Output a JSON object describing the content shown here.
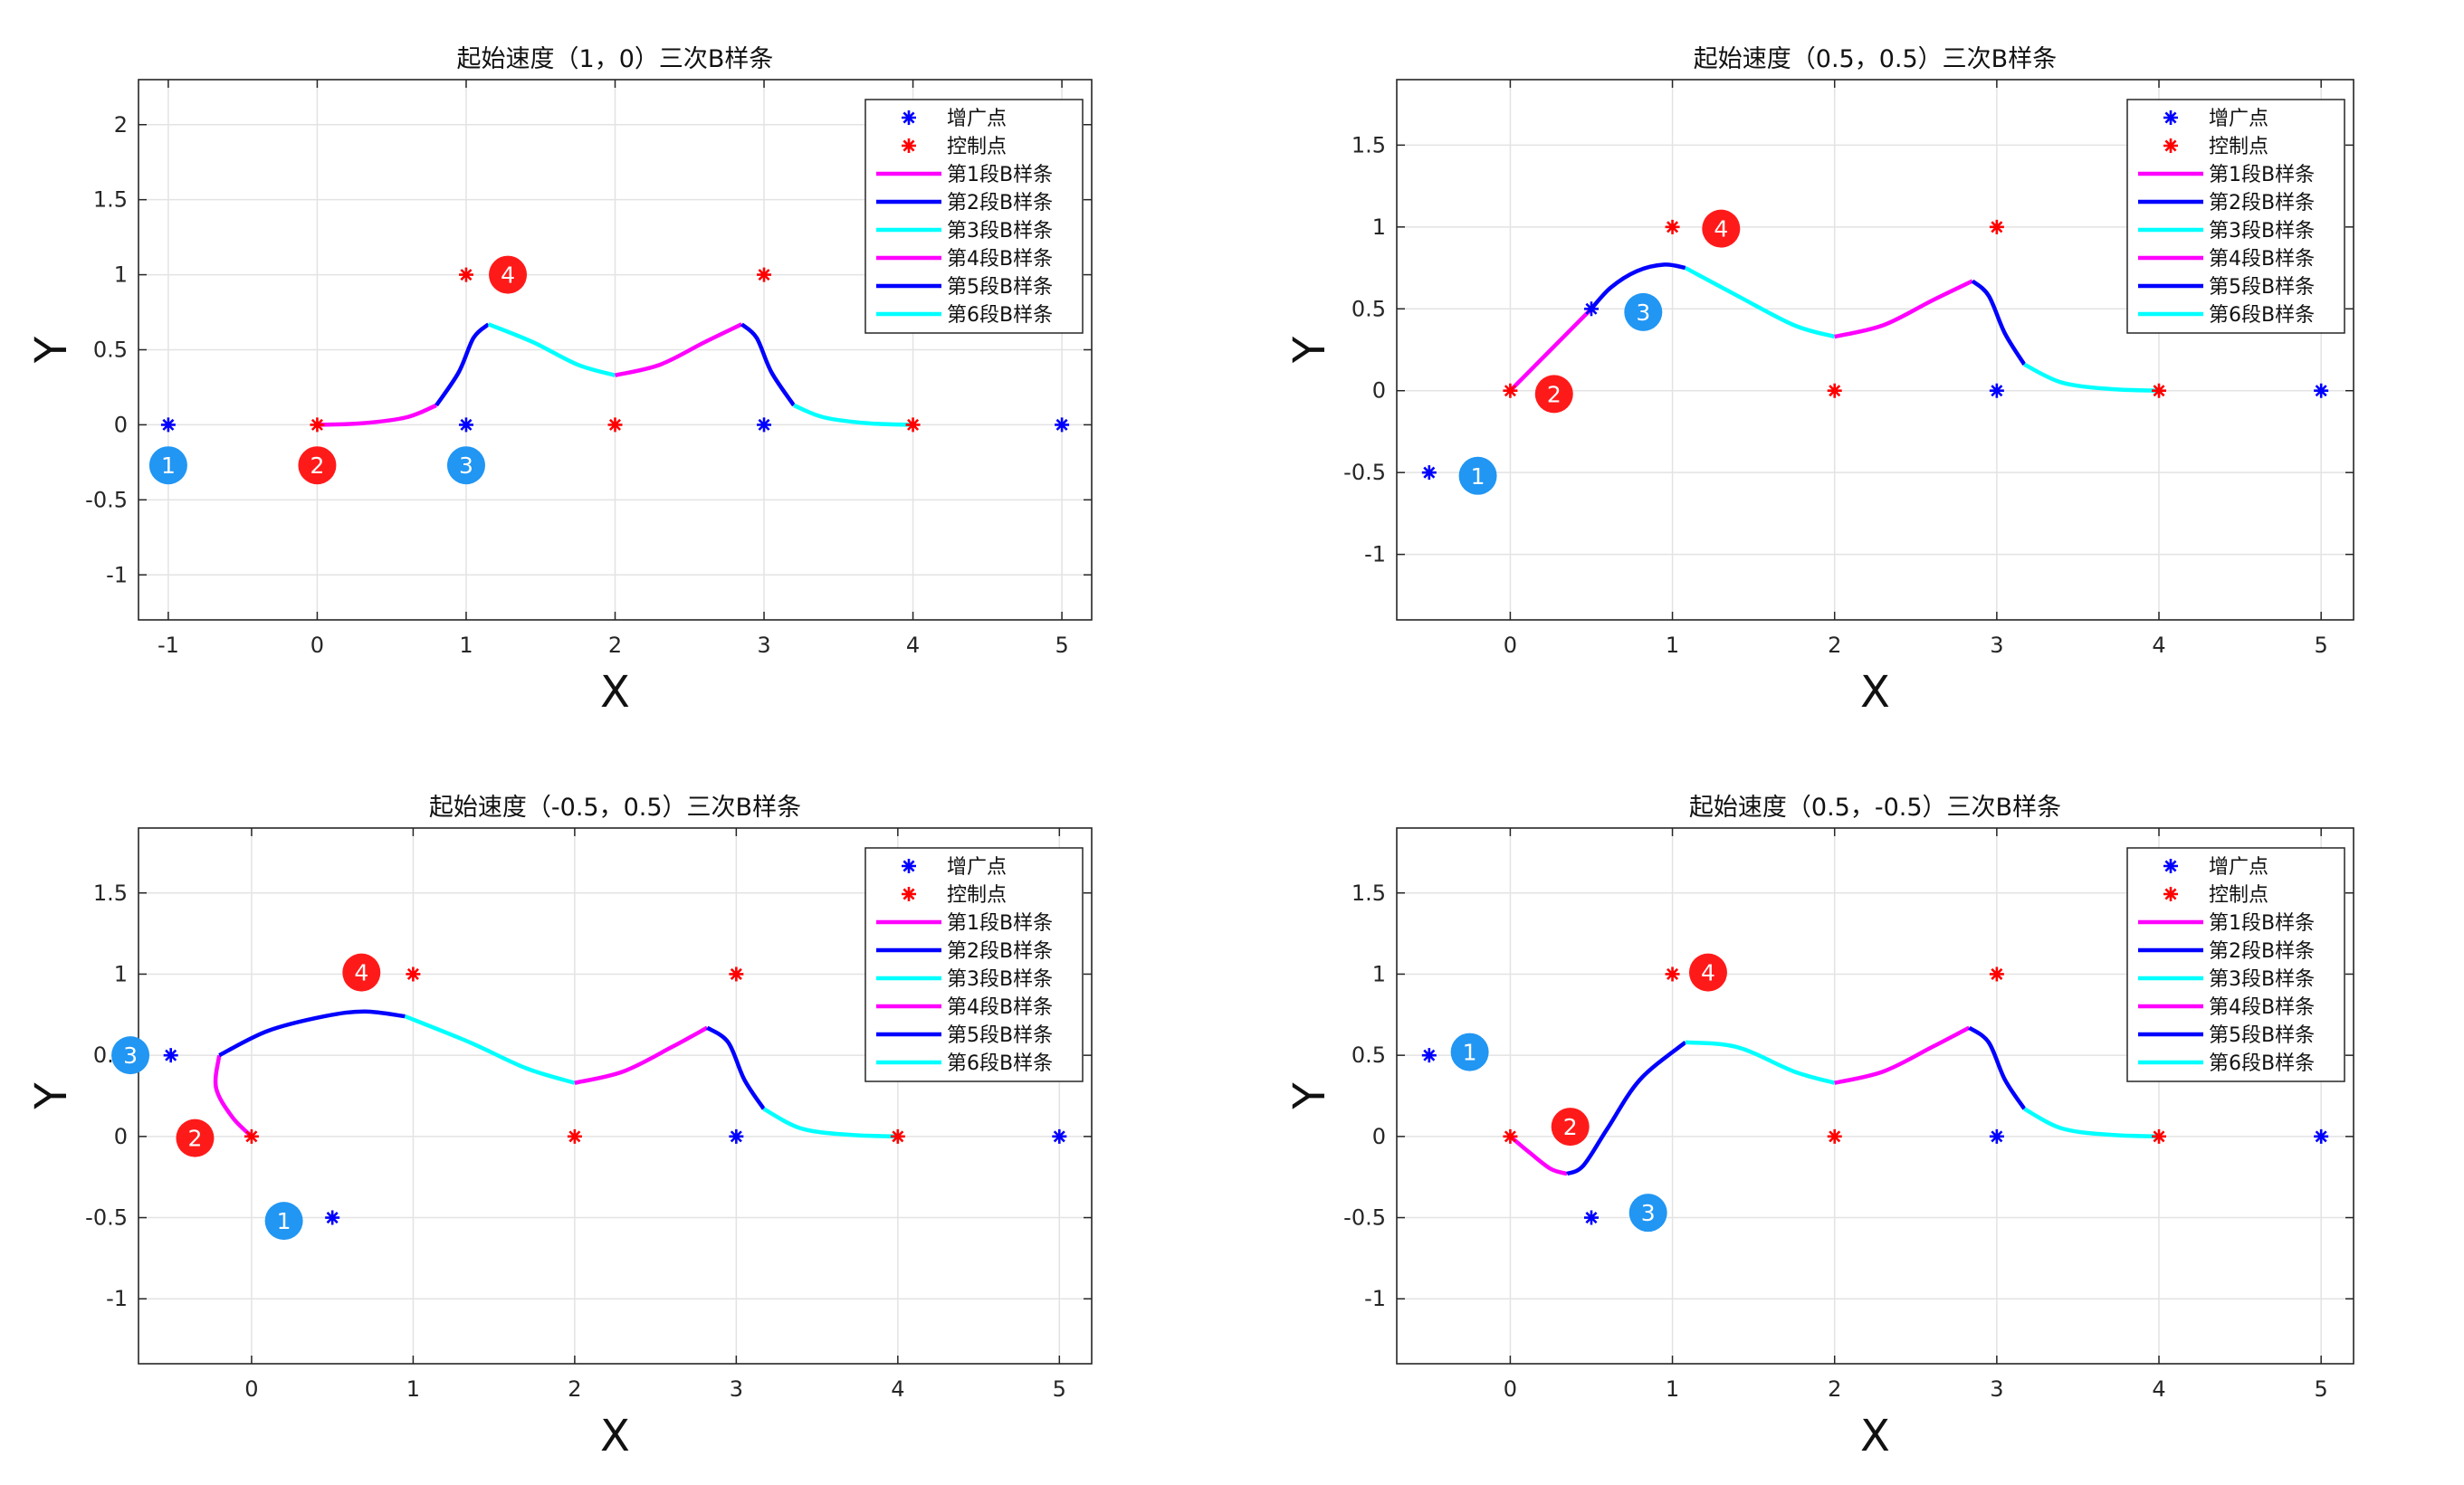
{
  "chart_data": [
    {
      "type": "line",
      "title": "起始速度（1，0）三次B样条",
      "xlabel": "X",
      "ylabel": "Y",
      "xlim": [
        -1.2,
        5.2
      ],
      "ylim": [
        -1.3,
        2.3
      ],
      "xticks": [
        -1,
        0,
        1,
        2,
        3,
        4,
        5
      ],
      "xtick_labels": [
        "-1",
        "0",
        "1",
        "2",
        "3",
        "4",
        "5"
      ],
      "yticks": [
        -1,
        -0.5,
        0,
        0.5,
        1,
        1.5,
        2
      ],
      "ytick_labels": [
        "-1",
        "-0.5",
        "0",
        "0.5",
        "1",
        "1.5",
        "2"
      ],
      "grid": true,
      "legend_position": "top-right",
      "augmented_points": {
        "name": "增广点",
        "color": "#0000ff",
        "x": [
          -1,
          1,
          3,
          5
        ],
        "y": [
          0,
          0,
          0,
          0
        ]
      },
      "control_points": {
        "name": "控制点",
        "color": "#ff0000",
        "x": [
          0,
          1,
          2,
          3,
          4
        ],
        "y": [
          0,
          1,
          0,
          1,
          0
        ]
      },
      "segments": [
        {
          "name": "第1段B样条",
          "color": "#ff00ff",
          "x": [
            0,
            0.3,
            0.6,
            0.8
          ],
          "y": [
            0,
            0.01,
            0.05,
            0.13
          ]
        },
        {
          "name": "第2段B样条",
          "color": "#0000ff",
          "x": [
            0.8,
            0.95,
            1.05,
            1.15
          ],
          "y": [
            0.13,
            0.35,
            0.58,
            0.67
          ]
        },
        {
          "name": "第3段B样条",
          "color": "#00ffff",
          "x": [
            1.15,
            1.45,
            1.75,
            2.0
          ],
          "y": [
            0.67,
            0.55,
            0.4,
            0.33
          ]
        },
        {
          "name": "第4段B样条",
          "color": "#ff00ff",
          "x": [
            2.0,
            2.3,
            2.6,
            2.85
          ],
          "y": [
            0.33,
            0.4,
            0.55,
            0.67
          ]
        },
        {
          "name": "第5段B样条",
          "color": "#0000ff",
          "x": [
            2.85,
            2.95,
            3.05,
            3.2
          ],
          "y": [
            0.67,
            0.58,
            0.35,
            0.13
          ]
        },
        {
          "name": "第6段B样条",
          "color": "#00ffff",
          "x": [
            3.2,
            3.4,
            3.7,
            4.0
          ],
          "y": [
            0.13,
            0.05,
            0.01,
            0
          ]
        }
      ],
      "markers": [
        {
          "label": "1",
          "color": "#2196f3",
          "x": -1,
          "y": -0.27
        },
        {
          "label": "2",
          "color": "#ff1a1a",
          "x": 0,
          "y": -0.27
        },
        {
          "label": "3",
          "color": "#2196f3",
          "x": 1,
          "y": -0.27
        },
        {
          "label": "4",
          "color": "#ff1a1a",
          "x": 1.28,
          "y": 1.0
        }
      ]
    },
    {
      "type": "line",
      "title": "起始速度（0.5，0.5）三次B样条",
      "xlabel": "X",
      "ylabel": "Y",
      "xlim": [
        -0.7,
        5.2
      ],
      "ylim": [
        -1.4,
        1.9
      ],
      "xticks": [
        0,
        1,
        2,
        3,
        4,
        5
      ],
      "xtick_labels": [
        "0",
        "1",
        "2",
        "3",
        "4",
        "5"
      ],
      "yticks": [
        -1,
        -0.5,
        0,
        0.5,
        1,
        1.5
      ],
      "ytick_labels": [
        "-1",
        "-0.5",
        "0",
        "0.5",
        "1",
        "1.5"
      ],
      "grid": true,
      "legend_position": "top-right",
      "augmented_points": {
        "name": "增广点",
        "color": "#0000ff",
        "x": [
          -0.5,
          0.5,
          3,
          5
        ],
        "y": [
          -0.5,
          0.5,
          0,
          0
        ]
      },
      "control_points": {
        "name": "控制点",
        "color": "#ff0000",
        "x": [
          0,
          1,
          2,
          3,
          4
        ],
        "y": [
          0,
          1,
          0,
          1,
          0
        ]
      },
      "segments": [
        {
          "name": "第1段B样条",
          "color": "#ff00ff",
          "x": [
            0,
            0.15,
            0.35,
            0.5
          ],
          "y": [
            0,
            0.15,
            0.35,
            0.5
          ]
        },
        {
          "name": "第2段B样条",
          "color": "#0000ff",
          "x": [
            0.5,
            0.62,
            0.78,
            0.95,
            1.08
          ],
          "y": [
            0.5,
            0.63,
            0.73,
            0.77,
            0.75
          ]
        },
        {
          "name": "第3段B样条",
          "color": "#00ffff",
          "x": [
            1.08,
            1.4,
            1.75,
            2.0
          ],
          "y": [
            0.75,
            0.58,
            0.4,
            0.33
          ]
        },
        {
          "name": "第4段B样条",
          "color": "#ff00ff",
          "x": [
            2.0,
            2.3,
            2.6,
            2.85
          ],
          "y": [
            0.33,
            0.4,
            0.55,
            0.67
          ]
        },
        {
          "name": "第5段B样条",
          "color": "#0000ff",
          "x": [
            2.85,
            2.95,
            3.05,
            3.17
          ],
          "y": [
            0.67,
            0.58,
            0.35,
            0.16
          ]
        },
        {
          "name": "第6段B样条",
          "color": "#00ffff",
          "x": [
            3.17,
            3.4,
            3.7,
            4.0
          ],
          "y": [
            0.16,
            0.05,
            0.01,
            0
          ]
        }
      ],
      "markers": [
        {
          "label": "1",
          "color": "#2196f3",
          "x": -0.2,
          "y": -0.52
        },
        {
          "label": "2",
          "color": "#ff1a1a",
          "x": 0.27,
          "y": -0.02
        },
        {
          "label": "3",
          "color": "#2196f3",
          "x": 0.82,
          "y": 0.48
        },
        {
          "label": "4",
          "color": "#ff1a1a",
          "x": 1.3,
          "y": 0.99
        }
      ]
    },
    {
      "type": "line",
      "title": "起始速度（-0.5，0.5）三次B样条",
      "xlabel": "X",
      "ylabel": "Y",
      "xlim": [
        -0.7,
        5.2
      ],
      "ylim": [
        -1.4,
        1.9
      ],
      "xticks": [
        0,
        1,
        2,
        3,
        4,
        5
      ],
      "xtick_labels": [
        "0",
        "1",
        "2",
        "3",
        "4",
        "5"
      ],
      "yticks": [
        -1,
        -0.5,
        0,
        0.5,
        1,
        1.5
      ],
      "ytick_labels": [
        "-1",
        "-0.5",
        "0",
        "0.5",
        "1",
        "1.5"
      ],
      "grid": true,
      "legend_position": "top-right",
      "augmented_points": {
        "name": "增广点",
        "color": "#0000ff",
        "x": [
          -0.5,
          0.5,
          3,
          5
        ],
        "y": [
          0.5,
          -0.5,
          0,
          0
        ]
      },
      "control_points": {
        "name": "控制点",
        "color": "#ff0000",
        "x": [
          0,
          1,
          2,
          3,
          4
        ],
        "y": [
          0,
          1,
          0,
          1,
          0
        ]
      },
      "segments": [
        {
          "name": "第1段B样条",
          "color": "#ff00ff",
          "x": [
            0,
            -0.12,
            -0.22,
            -0.2
          ],
          "y": [
            0,
            0.12,
            0.3,
            0.5
          ]
        },
        {
          "name": "第2段B样条",
          "color": "#0000ff",
          "x": [
            -0.2,
            0.1,
            0.45,
            0.7,
            0.95
          ],
          "y": [
            0.5,
            0.65,
            0.74,
            0.77,
            0.74
          ]
        },
        {
          "name": "第3段B样条",
          "color": "#00ffff",
          "x": [
            0.95,
            1.35,
            1.7,
            2.0
          ],
          "y": [
            0.74,
            0.58,
            0.42,
            0.33
          ]
        },
        {
          "name": "第4段B样条",
          "color": "#ff00ff",
          "x": [
            2.0,
            2.3,
            2.6,
            2.82
          ],
          "y": [
            0.33,
            0.4,
            0.55,
            0.67
          ]
        },
        {
          "name": "第5段B样条",
          "color": "#0000ff",
          "x": [
            2.82,
            2.95,
            3.05,
            3.17
          ],
          "y": [
            0.67,
            0.58,
            0.35,
            0.17
          ]
        },
        {
          "name": "第6段B样条",
          "color": "#00ffff",
          "x": [
            3.17,
            3.4,
            3.7,
            4.0
          ],
          "y": [
            0.17,
            0.05,
            0.01,
            0
          ]
        }
      ],
      "markers": [
        {
          "label": "1",
          "color": "#2196f3",
          "x": 0.2,
          "y": -0.52
        },
        {
          "label": "2",
          "color": "#ff1a1a",
          "x": -0.35,
          "y": -0.01
        },
        {
          "label": "3",
          "color": "#2196f3",
          "x": -0.75,
          "y": 0.5
        },
        {
          "label": "4",
          "color": "#ff1a1a",
          "x": 0.68,
          "y": 1.01
        }
      ]
    },
    {
      "type": "line",
      "title": "起始速度（0.5，-0.5）三次B样条",
      "xlabel": "X",
      "ylabel": "Y",
      "xlim": [
        -0.7,
        5.2
      ],
      "ylim": [
        -1.4,
        1.9
      ],
      "xticks": [
        0,
        1,
        2,
        3,
        4,
        5
      ],
      "xtick_labels": [
        "0",
        "1",
        "2",
        "3",
        "4",
        "5"
      ],
      "yticks": [
        -1,
        -0.5,
        0,
        0.5,
        1,
        1.5
      ],
      "ytick_labels": [
        "-1",
        "-0.5",
        "0",
        "0.5",
        "1",
        "1.5"
      ],
      "grid": true,
      "legend_position": "top-right",
      "augmented_points": {
        "name": "增广点",
        "color": "#0000ff",
        "x": [
          -0.5,
          0.5,
          3,
          5
        ],
        "y": [
          0.5,
          -0.5,
          0,
          0
        ]
      },
      "control_points": {
        "name": "控制点",
        "color": "#ff0000",
        "x": [
          0,
          1,
          2,
          3,
          4
        ],
        "y": [
          0,
          1,
          0,
          1,
          0
        ]
      },
      "segments": [
        {
          "name": "第1段B样条",
          "color": "#ff00ff",
          "x": [
            0,
            0.12,
            0.25,
            0.35
          ],
          "y": [
            0,
            -0.1,
            -0.2,
            -0.23
          ]
        },
        {
          "name": "第2段B样条",
          "color": "#0000ff",
          "x": [
            0.35,
            0.45,
            0.6,
            0.8,
            1.08
          ],
          "y": [
            -0.23,
            -0.18,
            0.05,
            0.35,
            0.58
          ]
        },
        {
          "name": "第3段B样条",
          "color": "#00ffff",
          "x": [
            1.08,
            1.4,
            1.75,
            2.0
          ],
          "y": [
            0.58,
            0.55,
            0.4,
            0.33
          ]
        },
        {
          "name": "第4段B样条",
          "color": "#ff00ff",
          "x": [
            2.0,
            2.3,
            2.6,
            2.83
          ],
          "y": [
            0.33,
            0.4,
            0.55,
            0.67
          ]
        },
        {
          "name": "第5段B样条",
          "color": "#0000ff",
          "x": [
            2.83,
            2.95,
            3.05,
            3.17
          ],
          "y": [
            0.67,
            0.58,
            0.35,
            0.17
          ]
        },
        {
          "name": "第6段B样条",
          "color": "#00ffff",
          "x": [
            3.17,
            3.4,
            3.7,
            4.0
          ],
          "y": [
            0.17,
            0.05,
            0.01,
            0
          ]
        }
      ],
      "markers": [
        {
          "label": "1",
          "color": "#2196f3",
          "x": -0.25,
          "y": 0.52
        },
        {
          "label": "2",
          "color": "#ff1a1a",
          "x": 0.37,
          "y": 0.06
        },
        {
          "label": "3",
          "color": "#2196f3",
          "x": 0.85,
          "y": -0.47
        },
        {
          "label": "4",
          "color": "#ff1a1a",
          "x": 1.22,
          "y": 1.01
        }
      ]
    }
  ]
}
